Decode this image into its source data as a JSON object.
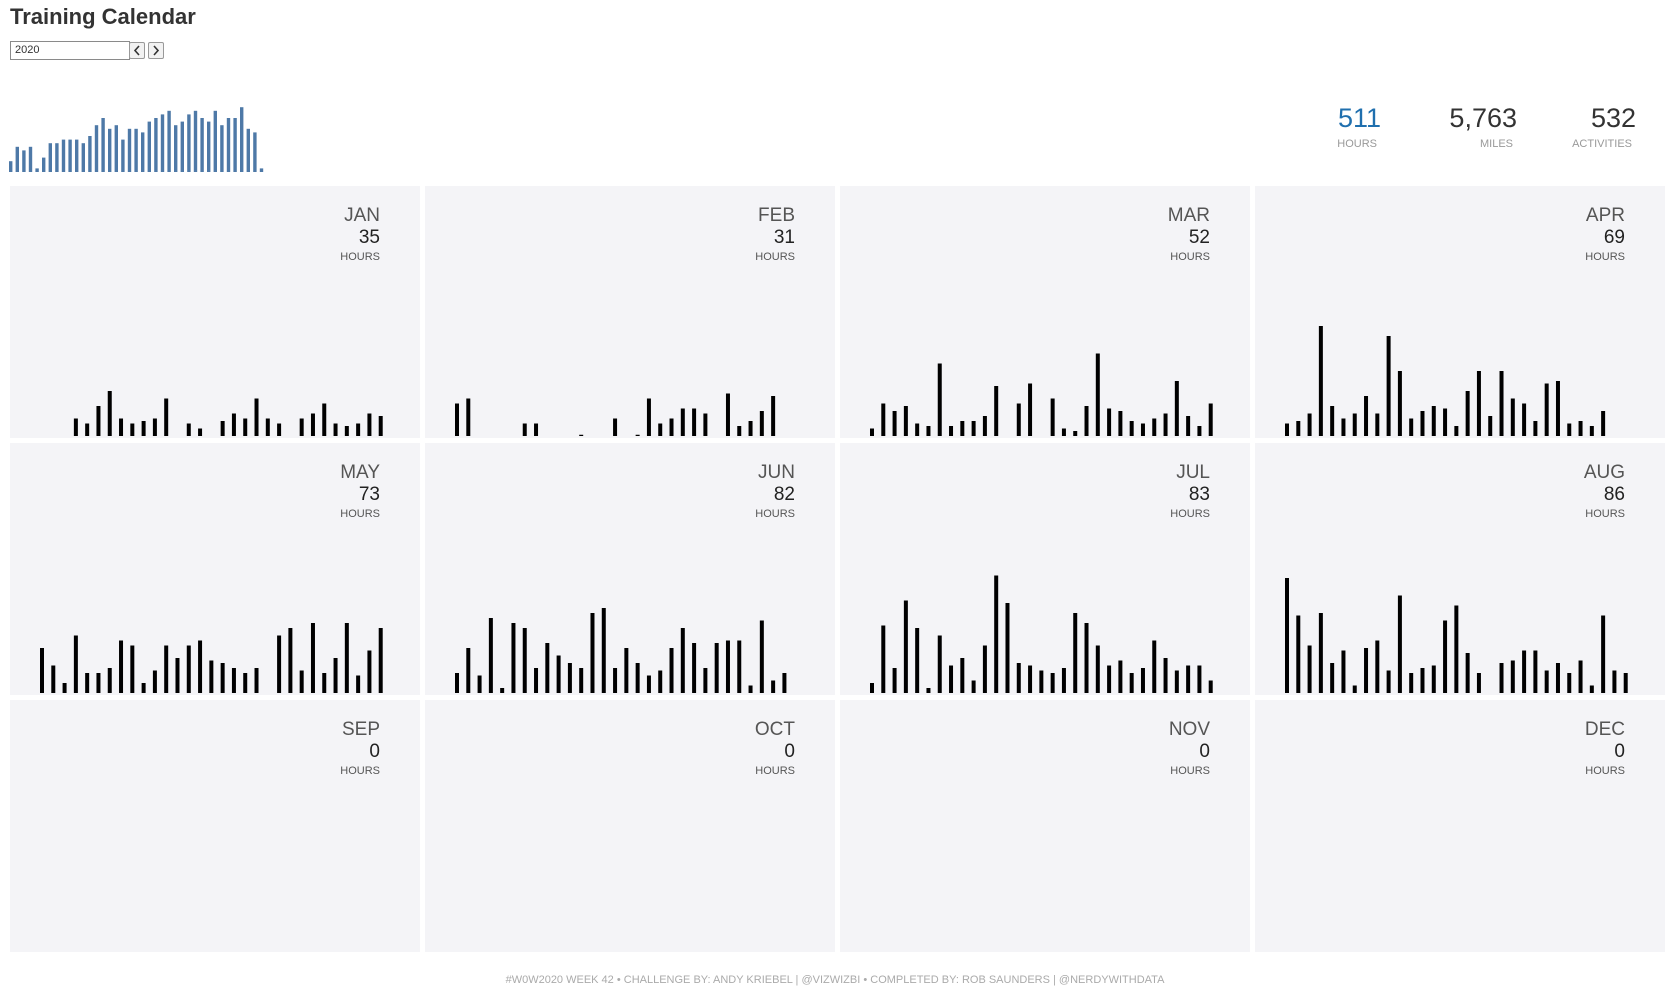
{
  "header": {
    "title": "Training Calendar",
    "year": "2020"
  },
  "kpis": [
    {
      "value": "511",
      "label": "HOURS"
    },
    {
      "value": "5,763",
      "label": "MILES"
    },
    {
      "value": "532",
      "label": "ACTIVITIES"
    }
  ],
  "chart_data": [
    {
      "type": "bar",
      "color": "#4e79a7",
      "ylim": [
        0,
        20
      ],
      "values": [
        3,
        7,
        6,
        7,
        1,
        4,
        8,
        8,
        9,
        9,
        9,
        8,
        10,
        13,
        15,
        12,
        13,
        9,
        12,
        12,
        11,
        14,
        15,
        16,
        17,
        13,
        14,
        16,
        17,
        15,
        14,
        17,
        13,
        15,
        15,
        18,
        12,
        11,
        1
      ]
    },
    {
      "type": "bar",
      "title": "JAN",
      "total": 35,
      "total_label": "HOURS",
      "color": "#000000",
      "ylim": [
        0,
        6
      ],
      "values": [
        0,
        0,
        0,
        0.7,
        0.5,
        1.2,
        1.8,
        0.7,
        0.5,
        0.6,
        0.7,
        1.5,
        0,
        0.5,
        0.3,
        0,
        0.6,
        0.9,
        0.7,
        1.5,
        0.7,
        0.5,
        0,
        0.7,
        0.9,
        1.3,
        0.5,
        0.4,
        0.5,
        0.9,
        0.8
      ]
    },
    {
      "type": "bar",
      "title": "FEB",
      "total": 31,
      "total_label": "HOURS",
      "color": "#000000",
      "ylim": [
        0,
        6
      ],
      "values": [
        1.3,
        1.5,
        0,
        0,
        0,
        0,
        0.5,
        0.5,
        0,
        0,
        0,
        0.05,
        0,
        0,
        0.7,
        0,
        0.05,
        1.5,
        0.5,
        0.7,
        1.1,
        1.1,
        0.9,
        0,
        1.7,
        0.4,
        0.6,
        1.0,
        1.6
      ]
    },
    {
      "type": "bar",
      "title": "MAR",
      "total": 52,
      "total_label": "HOURS",
      "color": "#000000",
      "ylim": [
        0,
        6
      ],
      "values": [
        0.3,
        1.3,
        1.0,
        1.2,
        0.5,
        0.4,
        2.9,
        0.4,
        0.6,
        0.6,
        0.8,
        2.0,
        0,
        1.3,
        2.1,
        0,
        1.5,
        0.3,
        0.2,
        1.2,
        3.3,
        1.1,
        1.0,
        0.6,
        0.5,
        0.7,
        0.9,
        2.2,
        0.8,
        0.4,
        1.3
      ]
    },
    {
      "type": "bar",
      "title": "APR",
      "total": 69,
      "total_label": "HOURS",
      "color": "#000000",
      "ylim": [
        0,
        6
      ],
      "values": [
        0.5,
        0.6,
        0.9,
        4.4,
        1.2,
        0.7,
        0.9,
        1.6,
        0.9,
        4.0,
        2.6,
        0.7,
        1.0,
        1.2,
        1.1,
        0.4,
        1.8,
        2.6,
        0.8,
        2.6,
        1.5,
        1.3,
        0.6,
        2.1,
        2.2,
        0.5,
        0.6,
        0.4,
        1.0,
        0
      ]
    },
    {
      "type": "bar",
      "title": "MAY",
      "total": 73,
      "total_label": "HOURS",
      "color": "#000000",
      "ylim": [
        0,
        6
      ],
      "values": [
        1.8,
        1.1,
        0.4,
        2.3,
        0.8,
        0.8,
        1.0,
        2.1,
        1.9,
        0.4,
        0.9,
        1.9,
        1.4,
        1.9,
        2.1,
        1.3,
        1.2,
        1.0,
        0.8,
        1.0,
        0,
        2.3,
        2.6,
        0.9,
        2.8,
        0.8,
        1.4,
        2.8,
        0.7,
        1.7,
        2.6
      ]
    },
    {
      "type": "bar",
      "title": "JUN",
      "total": 82,
      "total_label": "HOURS",
      "color": "#000000",
      "ylim": [
        0,
        6
      ],
      "values": [
        0.8,
        1.8,
        0.7,
        3.0,
        0.2,
        2.8,
        2.6,
        1.0,
        2.0,
        1.5,
        1.2,
        1.0,
        3.2,
        3.4,
        1.0,
        1.8,
        1.2,
        0.7,
        0.9,
        1.8,
        2.6,
        2.0,
        1.0,
        2.0,
        2.1,
        2.1,
        0.3,
        2.9,
        0.5,
        0.8
      ]
    },
    {
      "type": "bar",
      "title": "JUL",
      "total": 83,
      "total_label": "HOURS",
      "color": "#000000",
      "ylim": [
        0,
        6
      ],
      "values": [
        0.4,
        2.7,
        1.0,
        3.7,
        2.6,
        0.2,
        2.3,
        1.1,
        1.4,
        0.5,
        1.9,
        4.7,
        3.6,
        1.2,
        1.1,
        0.9,
        0.8,
        1.0,
        3.2,
        2.8,
        1.9,
        1.1,
        1.3,
        0.8,
        1.0,
        2.1,
        1.4,
        0.9,
        1.1,
        1.1,
        0.5
      ]
    },
    {
      "type": "bar",
      "title": "AUG",
      "total": 86,
      "total_label": "HOURS",
      "color": "#000000",
      "ylim": [
        0,
        6
      ],
      "values": [
        4.6,
        3.1,
        1.9,
        3.2,
        1.2,
        1.7,
        0.3,
        1.8,
        2.1,
        0.9,
        3.9,
        0.8,
        1.0,
        1.1,
        2.9,
        3.5,
        1.6,
        0.8,
        0,
        1.2,
        1.3,
        1.7,
        1.7,
        0.9,
        1.2,
        0.8,
        1.3,
        0.3,
        3.1,
        0.9,
        0.8
      ]
    },
    {
      "type": "bar",
      "title": "SEP",
      "total": 0,
      "total_label": "HOURS",
      "color": "#000000",
      "ylim": [
        0,
        6
      ],
      "values": []
    },
    {
      "type": "bar",
      "title": "OCT",
      "total": 0,
      "total_label": "HOURS",
      "color": "#000000",
      "ylim": [
        0,
        6
      ],
      "values": []
    },
    {
      "type": "bar",
      "title": "NOV",
      "total": 0,
      "total_label": "HOURS",
      "color": "#000000",
      "ylim": [
        0,
        6
      ],
      "values": []
    },
    {
      "type": "bar",
      "title": "DEC",
      "total": 0,
      "total_label": "HOURS",
      "color": "#000000",
      "ylim": [
        0,
        6
      ],
      "values": []
    }
  ],
  "footer": "#W0W2020 WEEK 42  •  CHALLENGE BY: ANDY KRIEBEL | @VIZWIZBI  •  COMPLETED BY: ROB SAUNDERS | @NERDYWITHDATA"
}
